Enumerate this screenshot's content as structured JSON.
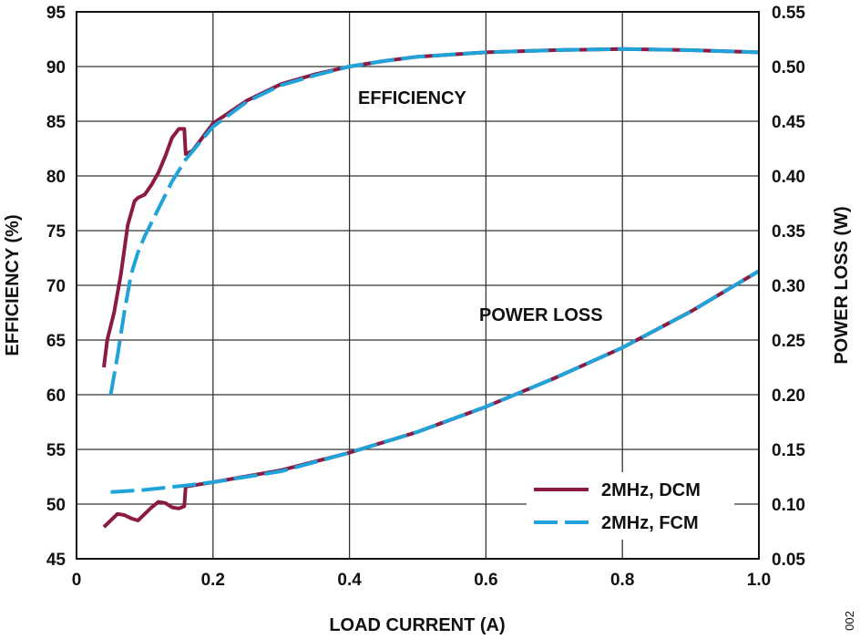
{
  "chart_data": {
    "type": "line",
    "figure_id": "002",
    "xlabel": "LOAD CURRENT (A)",
    "ylabel_left": "EFFICIENCY (%)",
    "ylabel_right": "POWER LOSS (W)",
    "xlim": [
      0,
      1.0
    ],
    "ylim_left": [
      45,
      95
    ],
    "ylim_right": [
      0.05,
      0.55
    ],
    "x_ticks": [
      "0",
      "0.2",
      "0.4",
      "0.6",
      "0.8",
      "1.0"
    ],
    "y_ticks_left": [
      "45",
      "50",
      "55",
      "60",
      "65",
      "70",
      "75",
      "80",
      "85",
      "90",
      "95"
    ],
    "y_ticks_right": [
      "0.05",
      "0.10",
      "0.15",
      "0.20",
      "0.25",
      "0.30",
      "0.35",
      "0.40",
      "0.45",
      "0.50",
      "0.55"
    ],
    "grid": true,
    "annotations": {
      "efficiency": "EFFICIENCY",
      "power_loss": "POWER LOSS"
    },
    "legend_position": "bottom-right",
    "legend": [
      {
        "label": "2MHz, DCM",
        "color": "#8b1a45",
        "style": "solid"
      },
      {
        "label": "2MHz, FCM",
        "color": "#1fa3d8",
        "style": "dashed"
      }
    ],
    "series": [
      {
        "name": "2MHz, DCM efficiency",
        "axis": "left",
        "color": "#8b1a45",
        "style": "solid",
        "x": [
          0.04,
          0.045,
          0.055,
          0.065,
          0.075,
          0.085,
          0.09,
          0.1,
          0.11,
          0.12,
          0.13,
          0.14,
          0.15,
          0.158,
          0.16,
          0.17,
          0.2,
          0.25,
          0.3,
          0.35,
          0.4,
          0.45,
          0.5,
          0.6,
          0.7,
          0.8,
          0.9,
          1.0
        ],
        "y": [
          62.5,
          65,
          67.5,
          71,
          75.5,
          77.7,
          78,
          78.3,
          79.2,
          80.3,
          81.8,
          83.5,
          84.3,
          84.3,
          82,
          82.3,
          84.8,
          86.9,
          88.4,
          89.3,
          90.0,
          90.5,
          90.9,
          91.3,
          91.5,
          91.6,
          91.5,
          91.3
        ]
      },
      {
        "name": "2MHz, FCM efficiency",
        "axis": "left",
        "color": "#1fa3d8",
        "style": "dashed",
        "x": [
          0.05,
          0.06,
          0.07,
          0.08,
          0.09,
          0.1,
          0.12,
          0.14,
          0.16,
          0.18,
          0.2,
          0.25,
          0.3,
          0.35,
          0.4,
          0.45,
          0.5,
          0.6,
          0.7,
          0.8,
          0.9,
          1.0
        ],
        "y": [
          60,
          63.5,
          67.5,
          71,
          73,
          74.5,
          77,
          79.5,
          81.5,
          83,
          84.5,
          86.8,
          88.3,
          89.2,
          90.0,
          90.5,
          90.9,
          91.3,
          91.5,
          91.6,
          91.5,
          91.3
        ]
      },
      {
        "name": "2MHz, DCM power loss",
        "axis": "right",
        "color": "#8b1a45",
        "style": "solid",
        "x": [
          0.04,
          0.05,
          0.06,
          0.07,
          0.08,
          0.09,
          0.1,
          0.11,
          0.12,
          0.13,
          0.14,
          0.15,
          0.158,
          0.16,
          0.2,
          0.3,
          0.4,
          0.5,
          0.6,
          0.7,
          0.8,
          0.9,
          1.0
        ],
        "y": [
          0.079,
          0.085,
          0.091,
          0.09,
          0.087,
          0.085,
          0.091,
          0.097,
          0.102,
          0.101,
          0.097,
          0.096,
          0.098,
          0.116,
          0.12,
          0.131,
          0.147,
          0.166,
          0.189,
          0.215,
          0.243,
          0.276,
          0.313
        ]
      },
      {
        "name": "2MHz, FCM power loss",
        "axis": "right",
        "color": "#1fa3d8",
        "style": "dashed",
        "x": [
          0.05,
          0.1,
          0.16,
          0.2,
          0.3,
          0.4,
          0.5,
          0.6,
          0.7,
          0.8,
          0.9,
          1.0
        ],
        "y": [
          0.111,
          0.113,
          0.117,
          0.12,
          0.13,
          0.147,
          0.166,
          0.189,
          0.215,
          0.243,
          0.276,
          0.313
        ]
      }
    ]
  }
}
